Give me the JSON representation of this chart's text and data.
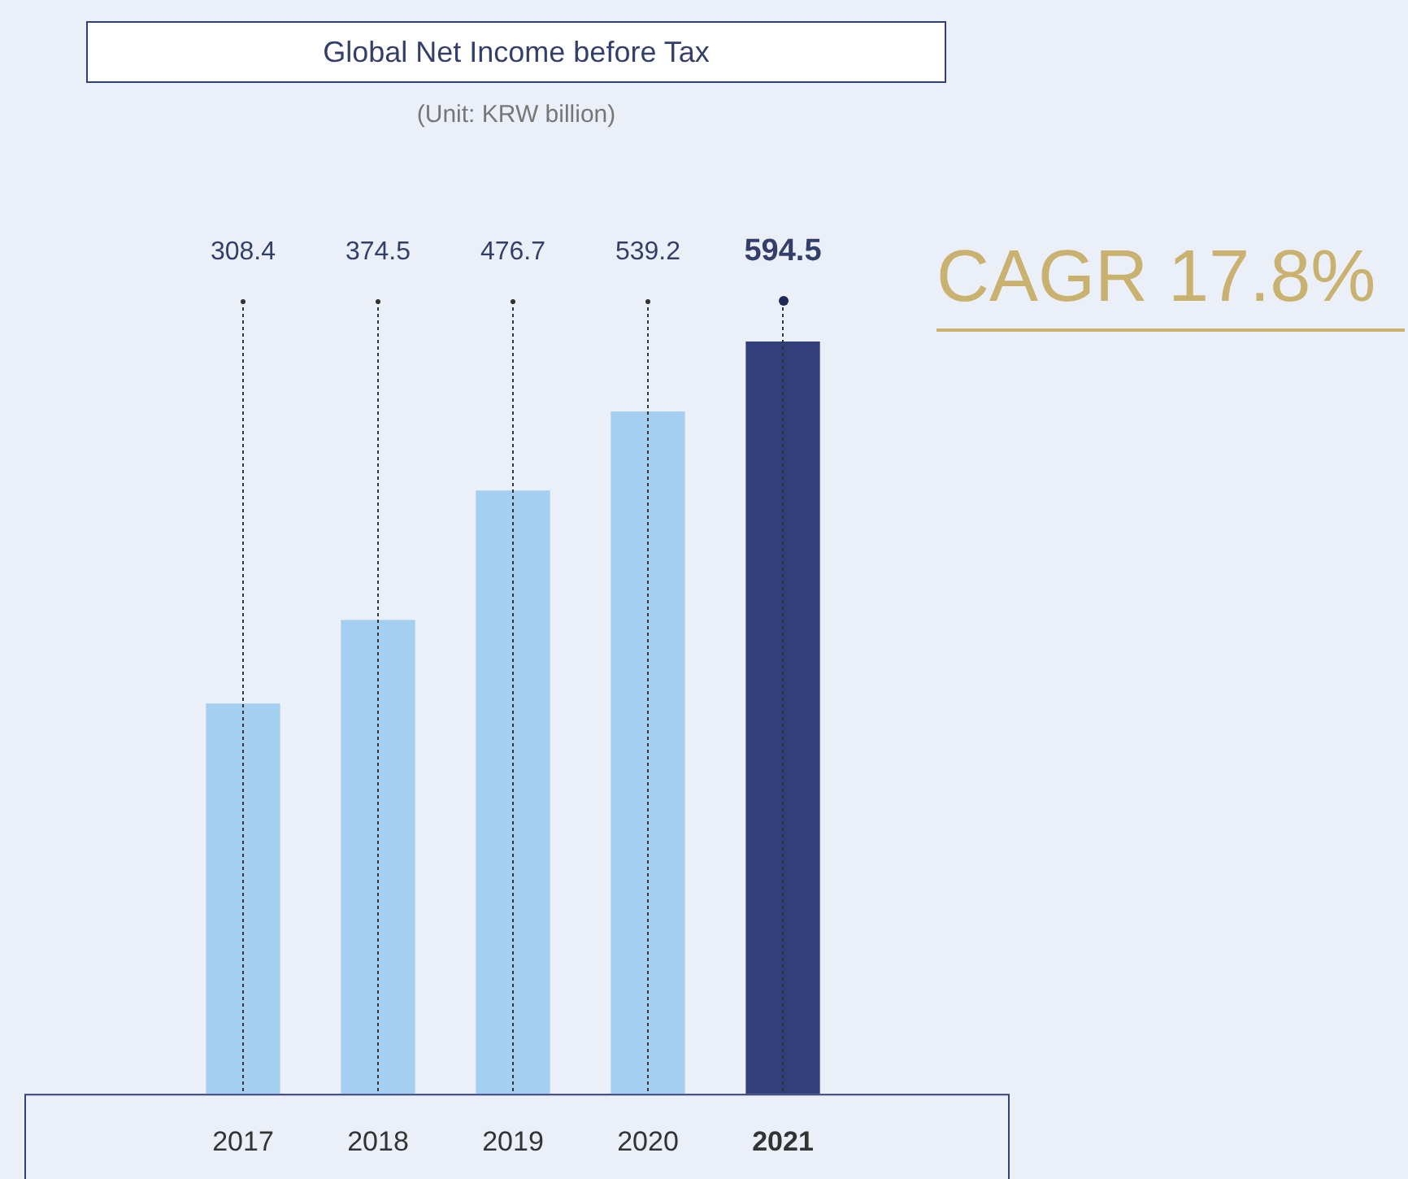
{
  "chart_data": {
    "type": "bar",
    "title": "Global Net Income before Tax",
    "subtitle": "(Unit: KRW billion)",
    "categories": [
      "2017",
      "2018",
      "2019",
      "2020",
      "2021"
    ],
    "values": [
      308.4,
      374.5,
      476.7,
      539.2,
      594.5
    ],
    "colors": [
      "#a4cff0",
      "#a4cff0",
      "#a4cff0",
      "#a4cff0",
      "#333f7a"
    ],
    "data_labels": true,
    "grid": "x",
    "annotations": [
      "CAGR 17.8%"
    ]
  }
}
